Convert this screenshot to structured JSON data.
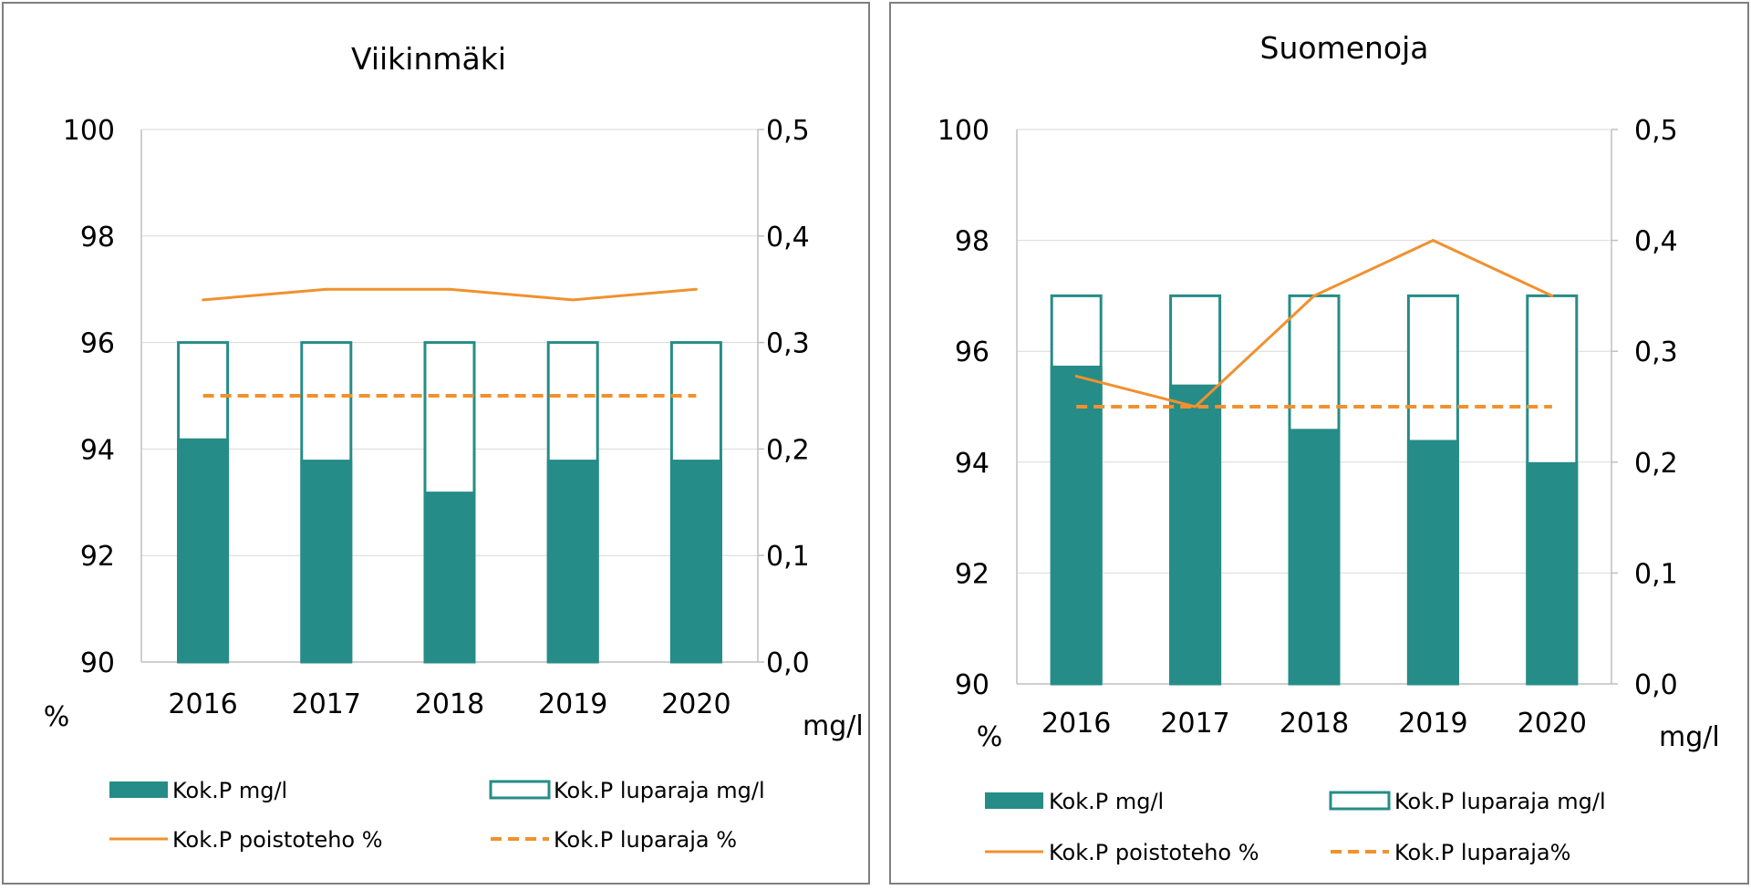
{
  "colors": {
    "bar_fill": "#268C87",
    "bar_outline": "#268C87",
    "line": "#F0912F",
    "grid": "#d9d9d9",
    "axis": "#bfbfbf",
    "panel_border": "#7f7f7f"
  },
  "chart_data": [
    {
      "type": "bar",
      "title": "Viikinmäki",
      "categories": [
        "2016",
        "2017",
        "2018",
        "2019",
        "2020"
      ],
      "y_left": {
        "unit": "%",
        "ylim": [
          90,
          100
        ],
        "ticks": [
          "90",
          "92",
          "94",
          "96",
          "98",
          "100"
        ]
      },
      "y_right": {
        "unit": "mg/l",
        "ylim": [
          0,
          0.5
        ],
        "ticks": [
          "0,0",
          "0,1",
          "0,2",
          "0,3",
          "0,4",
          "0,5"
        ]
      },
      "grid": true,
      "legend_position": "bottom",
      "series": [
        {
          "name": "Kok.P  mg/l",
          "kind": "bar-filled",
          "axis": "right",
          "values": [
            0.21,
            0.19,
            0.16,
            0.19,
            0.19
          ]
        },
        {
          "name": "Kok.P luparaja  mg/l",
          "kind": "bar-outline",
          "axis": "right",
          "values": [
            0.3,
            0.3,
            0.3,
            0.3,
            0.3
          ]
        },
        {
          "name": "Kok.P poistoteho %",
          "kind": "line-solid",
          "axis": "left",
          "values": [
            96.8,
            97.0,
            97.0,
            96.8,
            97.0
          ]
        },
        {
          "name": "Kok.P luparaja  %",
          "kind": "line-dashed",
          "axis": "left",
          "values": [
            95,
            95,
            95,
            95,
            95
          ]
        }
      ]
    },
    {
      "type": "bar",
      "title": "Suomenoja",
      "categories": [
        "2016",
        "2017",
        "2018",
        "2019",
        "2020"
      ],
      "y_left": {
        "unit": "%",
        "ylim": [
          90,
          100
        ],
        "ticks": [
          "90",
          "92",
          "94",
          "96",
          "98",
          "100"
        ]
      },
      "y_right": {
        "unit": "mg/l",
        "ylim": [
          0,
          0.5
        ],
        "ticks": [
          "0,0",
          "0,1",
          "0,2",
          "0,3",
          "0,4",
          "0,5"
        ]
      },
      "grid": true,
      "legend_position": "bottom",
      "series": [
        {
          "name": "Kok.P mg/l",
          "kind": "bar-filled",
          "axis": "right",
          "values": [
            0.287,
            0.27,
            0.23,
            0.22,
            0.2
          ]
        },
        {
          "name": "Kok.P luparaja mg/l",
          "kind": "bar-outline",
          "axis": "right",
          "values": [
            0.35,
            0.35,
            0.35,
            0.35,
            0.35
          ]
        },
        {
          "name": "Kok.P poistoteho %",
          "kind": "line-solid",
          "axis": "left",
          "values": [
            95.55,
            95.0,
            97.0,
            98.0,
            97.0
          ]
        },
        {
          "name": "Kok.P luparaja%",
          "kind": "line-dashed",
          "axis": "left",
          "values": [
            95,
            95,
            95,
            95,
            95
          ]
        }
      ]
    }
  ]
}
